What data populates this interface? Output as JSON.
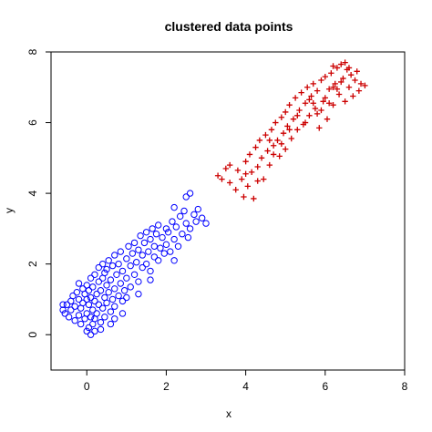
{
  "chart_data": {
    "type": "scatter",
    "title": "clustered data points",
    "xlabel": "x",
    "ylabel": "y",
    "xlim": [
      -0.9,
      8.0
    ],
    "ylim": [
      -1.0,
      8.0
    ],
    "x_ticks": [
      0,
      2,
      4,
      6,
      8
    ],
    "y_ticks": [
      0,
      2,
      4,
      6,
      8
    ],
    "grid": false,
    "legend": "none",
    "series": [
      {
        "marker": "circle",
        "color": "#0000ff",
        "points": [
          [
            -0.6,
            0.7
          ],
          [
            -0.55,
            0.6
          ],
          [
            -0.5,
            0.85
          ],
          [
            -0.45,
            0.5
          ],
          [
            -0.4,
            0.95
          ],
          [
            -0.4,
            0.7
          ],
          [
            -0.35,
            1.1
          ],
          [
            -0.3,
            0.4
          ],
          [
            -0.3,
            0.8
          ],
          [
            -0.25,
            1.2
          ],
          [
            -0.2,
            0.55
          ],
          [
            -0.2,
            1.0
          ],
          [
            -0.15,
            0.3
          ],
          [
            -0.15,
            0.75
          ],
          [
            -0.1,
            1.3
          ],
          [
            -0.1,
            0.9
          ],
          [
            -0.05,
            0.45
          ],
          [
            -0.05,
            1.15
          ],
          [
            0.0,
            0.1
          ],
          [
            0.0,
            0.6
          ],
          [
            0.0,
            1.0
          ],
          [
            0.0,
            1.4
          ],
          [
            0.05,
            0.2
          ],
          [
            0.05,
            0.85
          ],
          [
            0.05,
            1.25
          ],
          [
            0.1,
            0.5
          ],
          [
            0.1,
            1.05
          ],
          [
            0.1,
            1.6
          ],
          [
            0.15,
            0.3
          ],
          [
            0.15,
            0.7
          ],
          [
            0.15,
            1.35
          ],
          [
            0.2,
            0.95
          ],
          [
            0.2,
            1.7
          ],
          [
            0.2,
            0.45
          ],
          [
            0.25,
            1.15
          ],
          [
            0.25,
            0.6
          ],
          [
            0.3,
            1.5
          ],
          [
            0.3,
            0.85
          ],
          [
            0.3,
            1.9
          ],
          [
            0.35,
            0.35
          ],
          [
            0.35,
            1.25
          ],
          [
            0.4,
            0.75
          ],
          [
            0.4,
            1.6
          ],
          [
            0.4,
            2.0
          ],
          [
            0.45,
            1.05
          ],
          [
            0.45,
            0.5
          ],
          [
            0.5,
            1.4
          ],
          [
            0.5,
            1.85
          ],
          [
            0.5,
            0.9
          ],
          [
            0.55,
            1.2
          ],
          [
            0.55,
            2.1
          ],
          [
            0.6,
            0.65
          ],
          [
            0.6,
            1.55
          ],
          [
            0.65,
            1.0
          ],
          [
            0.65,
            1.95
          ],
          [
            0.7,
            1.3
          ],
          [
            0.7,
            2.25
          ],
          [
            0.7,
            0.8
          ],
          [
            0.75,
            1.7
          ],
          [
            0.8,
            1.1
          ],
          [
            0.8,
            2.0
          ],
          [
            0.85,
            1.45
          ],
          [
            0.85,
            2.35
          ],
          [
            0.9,
            0.95
          ],
          [
            0.9,
            1.8
          ],
          [
            0.95,
            1.25
          ],
          [
            1.0,
            2.15
          ],
          [
            1.0,
            1.6
          ],
          [
            1.05,
            2.5
          ],
          [
            1.1,
            1.35
          ],
          [
            1.1,
            1.95
          ],
          [
            1.15,
            2.3
          ],
          [
            1.2,
            1.7
          ],
          [
            1.2,
            2.6
          ],
          [
            1.25,
            2.05
          ],
          [
            1.3,
            1.5
          ],
          [
            1.3,
            2.4
          ],
          [
            1.35,
            2.8
          ],
          [
            1.4,
            1.9
          ],
          [
            1.4,
            2.25
          ],
          [
            1.45,
            2.6
          ],
          [
            1.5,
            2.0
          ],
          [
            1.5,
            2.9
          ],
          [
            1.55,
            2.35
          ],
          [
            1.6,
            1.8
          ],
          [
            1.6,
            2.7
          ],
          [
            1.65,
            3.0
          ],
          [
            1.7,
            2.2
          ],
          [
            1.7,
            2.5
          ],
          [
            1.75,
            2.85
          ],
          [
            1.8,
            2.1
          ],
          [
            1.8,
            3.1
          ],
          [
            1.85,
            2.45
          ],
          [
            1.9,
            2.75
          ],
          [
            1.95,
            2.3
          ],
          [
            2.0,
            3.0
          ],
          [
            2.0,
            2.55
          ],
          [
            2.05,
            2.9
          ],
          [
            2.1,
            2.35
          ],
          [
            2.15,
            3.2
          ],
          [
            2.2,
            2.7
          ],
          [
            2.25,
            3.05
          ],
          [
            2.3,
            2.5
          ],
          [
            2.35,
            3.35
          ],
          [
            2.4,
            2.85
          ],
          [
            2.45,
            3.5
          ],
          [
            2.5,
            3.15
          ],
          [
            2.55,
            2.75
          ],
          [
            2.6,
            3.0
          ],
          [
            2.7,
            3.4
          ],
          [
            2.75,
            3.2
          ],
          [
            2.8,
            3.55
          ],
          [
            2.9,
            3.3
          ],
          [
            3.0,
            3.15
          ],
          [
            2.5,
            3.9
          ],
          [
            2.6,
            4.0
          ],
          [
            2.2,
            3.6
          ],
          [
            -0.6,
            0.85
          ],
          [
            0.2,
            0.1
          ],
          [
            0.6,
            0.3
          ],
          [
            0.9,
            0.6
          ],
          [
            1.0,
            1.05
          ],
          [
            -0.2,
            1.45
          ],
          [
            0.45,
            1.75
          ],
          [
            0.7,
            0.45
          ],
          [
            1.3,
            1.15
          ],
          [
            1.6,
            1.55
          ],
          [
            2.2,
            2.1
          ],
          [
            0.1,
            0.0
          ],
          [
            0.35,
            0.15
          ]
        ]
      },
      {
        "marker": "plus",
        "color": "#cc0000",
        "points": [
          [
            3.3,
            4.5
          ],
          [
            3.5,
            4.7
          ],
          [
            3.6,
            4.3
          ],
          [
            3.75,
            4.1
          ],
          [
            3.8,
            4.65
          ],
          [
            3.9,
            4.4
          ],
          [
            3.95,
            3.9
          ],
          [
            4.0,
            4.9
          ],
          [
            4.05,
            4.2
          ],
          [
            4.1,
            5.1
          ],
          [
            4.15,
            4.6
          ],
          [
            4.2,
            3.85
          ],
          [
            4.25,
            5.3
          ],
          [
            4.3,
            4.75
          ],
          [
            4.35,
            5.5
          ],
          [
            4.4,
            5.0
          ],
          [
            4.45,
            4.4
          ],
          [
            4.5,
            5.65
          ],
          [
            4.55,
            5.2
          ],
          [
            4.6,
            4.8
          ],
          [
            4.65,
            5.8
          ],
          [
            4.7,
            5.35
          ],
          [
            4.75,
            6.0
          ],
          [
            4.8,
            5.5
          ],
          [
            4.85,
            5.05
          ],
          [
            4.9,
            6.15
          ],
          [
            4.95,
            5.7
          ],
          [
            5.0,
            6.3
          ],
          [
            5.0,
            5.25
          ],
          [
            5.05,
            5.9
          ],
          [
            5.1,
            6.5
          ],
          [
            5.15,
            5.55
          ],
          [
            5.2,
            6.1
          ],
          [
            5.25,
            6.7
          ],
          [
            5.3,
            5.8
          ],
          [
            5.35,
            6.35
          ],
          [
            5.4,
            6.85
          ],
          [
            5.45,
            5.95
          ],
          [
            5.5,
            6.55
          ],
          [
            5.55,
            7.0
          ],
          [
            5.6,
            6.2
          ],
          [
            5.65,
            6.75
          ],
          [
            5.7,
            7.1
          ],
          [
            5.75,
            6.4
          ],
          [
            5.8,
            6.9
          ],
          [
            5.85,
            5.85
          ],
          [
            5.9,
            7.2
          ],
          [
            5.95,
            6.6
          ],
          [
            6.0,
            7.3
          ],
          [
            6.05,
            6.1
          ],
          [
            6.1,
            6.95
          ],
          [
            6.15,
            7.4
          ],
          [
            6.2,
            6.5
          ],
          [
            6.25,
            7.1
          ],
          [
            6.3,
            7.55
          ],
          [
            6.35,
            6.8
          ],
          [
            6.4,
            7.65
          ],
          [
            6.45,
            7.25
          ],
          [
            6.5,
            6.6
          ],
          [
            6.55,
            7.5
          ],
          [
            6.6,
            7.0
          ],
          [
            6.65,
            7.35
          ],
          [
            6.7,
            6.75
          ],
          [
            6.75,
            7.2
          ],
          [
            6.8,
            7.45
          ],
          [
            6.85,
            6.9
          ],
          [
            6.9,
            7.1
          ],
          [
            7.0,
            7.05
          ],
          [
            6.5,
            7.7
          ],
          [
            6.2,
            7.6
          ],
          [
            5.3,
            6.2
          ],
          [
            5.1,
            5.8
          ],
          [
            4.9,
            5.4
          ],
          [
            4.7,
            5.1
          ],
          [
            5.6,
            6.65
          ],
          [
            5.8,
            6.25
          ],
          [
            6.0,
            6.7
          ],
          [
            6.2,
            7.0
          ],
          [
            6.4,
            7.15
          ],
          [
            6.6,
            7.55
          ],
          [
            4.0,
            4.55
          ],
          [
            3.6,
            4.8
          ],
          [
            3.4,
            4.4
          ],
          [
            4.3,
            4.35
          ],
          [
            4.6,
            5.5
          ],
          [
            5.5,
            6.0
          ],
          [
            5.7,
            6.55
          ],
          [
            5.9,
            6.35
          ],
          [
            6.1,
            6.55
          ],
          [
            6.3,
            6.95
          ]
        ]
      }
    ]
  }
}
